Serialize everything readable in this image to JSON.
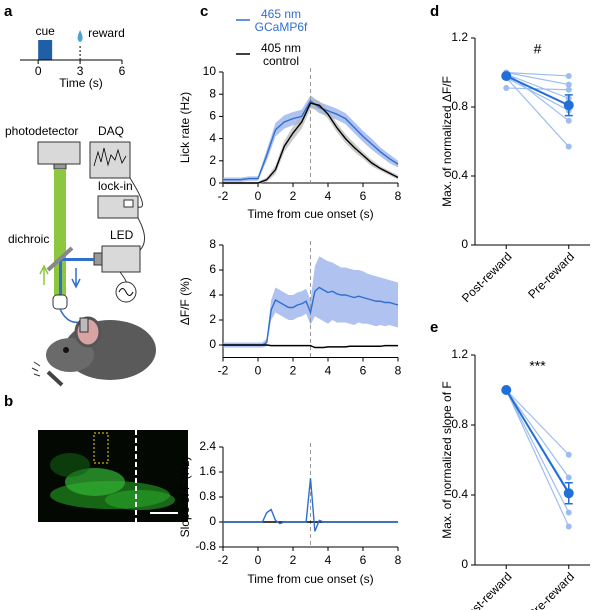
{
  "panels": [
    "a",
    "b",
    "c",
    "d",
    "e"
  ],
  "schematic": {
    "cue_label": "cue",
    "reward_label": "reward",
    "xlabel": "Time (s)",
    "xlim": [
      -1.3,
      6
    ],
    "xticks": [
      0,
      3,
      6
    ],
    "cue": [
      0,
      1
    ],
    "reward": 3,
    "photodetector": "photodetector",
    "daq": "DAQ",
    "lockin": "lock-in",
    "led": "LED",
    "dichroic": "dichroic"
  },
  "chart_data": [
    {
      "type": "line",
      "ylabel": "Lick rate (Hz)",
      "xlabel": "Time from cue onset (s)",
      "xlim": [
        -2,
        8
      ],
      "xticks": [
        -2,
        0,
        2,
        4,
        6,
        8
      ],
      "ylim": [
        0,
        10
      ],
      "yticks": [
        0,
        2,
        4,
        6,
        8,
        10
      ],
      "vline": 3,
      "legend": true,
      "x": [
        -2,
        -1.5,
        -1,
        -0.5,
        0,
        0.5,
        1,
        1.5,
        2,
        2.5,
        3,
        3.5,
        4,
        4.5,
        5,
        5.5,
        6,
        6.5,
        7,
        7.5,
        8
      ],
      "series": [
        {
          "name": "465 nm GCaMP6f",
          "color": "#2f6fd0",
          "band_color": "#8fa8ea",
          "values": [
            0.3,
            0.3,
            0.3,
            0.4,
            0.4,
            2.5,
            4.8,
            5.5,
            5.8,
            6,
            7.4,
            6.8,
            6.5,
            6.2,
            5.8,
            5,
            4.2,
            3.5,
            2.8,
            2.2,
            1.7
          ],
          "errors": [
            0.2,
            0.2,
            0.2,
            0.2,
            0.2,
            0.5,
            0.6,
            0.6,
            0.6,
            0.6,
            0.5,
            0.5,
            0.5,
            0.5,
            0.5,
            0.5,
            0.5,
            0.5,
            0.4,
            0.4,
            0.3
          ]
        },
        {
          "name": "405 nm control",
          "color": "#000000",
          "band_color": "#b5b5b5",
          "values": [
            0,
            0,
            0,
            0,
            0,
            0.3,
            1.2,
            3.3,
            4.5,
            5.5,
            7.2,
            7,
            6.2,
            5,
            4,
            3.2,
            2.5,
            1.8,
            1.3,
            0.9,
            0.5
          ],
          "errors": [
            0.1,
            0.1,
            0.1,
            0.1,
            0.1,
            0.2,
            0.4,
            0.5,
            0.6,
            0.6,
            0.5,
            0.4,
            0.4,
            0.4,
            0.4,
            0.4,
            0.3,
            0.3,
            0.2,
            0.2,
            0.2
          ]
        }
      ]
    },
    {
      "type": "line",
      "ylabel": "ΔF/F (%)",
      "xlim": [
        -2,
        8
      ],
      "xticks": [
        -2,
        0,
        2,
        4,
        6,
        8
      ],
      "ylim": [
        -1,
        8
      ],
      "yticks": [
        0,
        2,
        4,
        6,
        8
      ],
      "vline": 3,
      "x": [
        -2,
        -1.75,
        -1.5,
        -1.25,
        -1,
        -0.75,
        -0.5,
        -0.25,
        0,
        0.25,
        0.5,
        0.75,
        1,
        1.25,
        1.5,
        1.75,
        2,
        2.25,
        2.5,
        2.75,
        3,
        3.25,
        3.5,
        3.75,
        4,
        4.25,
        4.5,
        4.75,
        5,
        5.25,
        5.5,
        5.75,
        6,
        6.25,
        6.5,
        6.75,
        7,
        7.25,
        7.5,
        7.75,
        8
      ],
      "series": [
        {
          "color": "#2f6fd0",
          "band_color": "#8fa8ea",
          "values": [
            0,
            0,
            0,
            0,
            0,
            0,
            0,
            0,
            0,
            0,
            0.2,
            2.8,
            3.6,
            3.4,
            3.2,
            3,
            3,
            3.2,
            3.3,
            3.5,
            2.6,
            4.3,
            4.6,
            4.4,
            4.2,
            4.3,
            4.1,
            4,
            4,
            3.9,
            3.8,
            3.9,
            3.8,
            3.7,
            3.6,
            3.5,
            3.5,
            3.4,
            3.4,
            3.3,
            3.2
          ],
          "errors": [
            0.2,
            0.2,
            0.2,
            0.2,
            0.2,
            0.2,
            0.2,
            0.2,
            0.2,
            0.2,
            0.3,
            0.8,
            1,
            1,
            1,
            1,
            1,
            1,
            1,
            1,
            1,
            2,
            2.5,
            2.5,
            2.5,
            2.3,
            2.3,
            2.2,
            2.2,
            2.2,
            2.2,
            2.1,
            2.1,
            2,
            2,
            2,
            1.9,
            1.9,
            1.8,
            1.8,
            1.8
          ]
        },
        {
          "color": "#000000",
          "values": [
            0,
            0,
            0,
            0,
            0,
            0,
            0,
            0,
            0,
            0,
            0,
            -0.05,
            -0.05,
            -0.05,
            -0.05,
            -0.05,
            -0.05,
            -0.05,
            -0.05,
            -0.05,
            -0.05,
            -0.2,
            -0.2,
            -0.2,
            -0.15,
            -0.15,
            -0.15,
            -0.15,
            -0.15,
            -0.1,
            -0.1,
            -0.1,
            -0.1,
            -0.1,
            -0.1,
            -0.1,
            -0.1,
            -0.05,
            -0.05,
            -0.05,
            -0.05
          ]
        }
      ]
    },
    {
      "type": "line",
      "ylabel": "Slope of F (Hz)",
      "xlabel": "Time from cue onset (s)",
      "xlim": [
        -2,
        8
      ],
      "xticks": [
        -2,
        0,
        2,
        4,
        6,
        8
      ],
      "ylim": [
        -0.8,
        2.4
      ],
      "yticks": [
        -0.8,
        0,
        0.8,
        1.6,
        2.4
      ],
      "vline": 3,
      "x": [
        -2,
        -1.75,
        -1.5,
        -1.25,
        -1,
        -0.75,
        -0.5,
        -0.25,
        0,
        0.25,
        0.5,
        0.75,
        1,
        1.25,
        1.5,
        1.75,
        2,
        2.25,
        2.5,
        2.75,
        3,
        3.25,
        3.5,
        3.75,
        4,
        4.25,
        4.5,
        4.75,
        5,
        5.25,
        5.5,
        5.75,
        6,
        6.25,
        6.5,
        6.75,
        7,
        7.25,
        7.5,
        7.75,
        8
      ],
      "series": [
        {
          "color": "#000000",
          "values": [
            0,
            0,
            0,
            0,
            0,
            0,
            0,
            0,
            0,
            0,
            0,
            0,
            0,
            0,
            0,
            0,
            0,
            0,
            0,
            0,
            0,
            0,
            0,
            0,
            0,
            0,
            0,
            0,
            0,
            0,
            0,
            0,
            0,
            0,
            0,
            0,
            0,
            0,
            0,
            0,
            0
          ]
        },
        {
          "color": "#2f6fd0",
          "values": [
            0,
            0,
            0,
            0,
            0,
            0,
            0,
            0,
            0,
            0,
            0.3,
            0.4,
            0.05,
            -0.05,
            0,
            0,
            0,
            0,
            0,
            0,
            1.4,
            -0.3,
            0.05,
            0,
            0,
            0,
            0,
            0,
            0,
            0,
            0,
            0,
            0,
            0,
            0,
            0,
            0,
            0,
            0,
            0,
            0
          ]
        }
      ]
    },
    {
      "type": "paired",
      "ylabel": "Max. of normalized ΔF/F",
      "annotation": "#",
      "categories": [
        "Post-reward",
        "Pre-reward"
      ],
      "ylim": [
        0,
        1.2
      ],
      "yticks": [
        0,
        0.4,
        0.8,
        1.2
      ],
      "color": "#1f6fd6",
      "subject_color": "#9dbdf0",
      "subjects": [
        [
          1,
          0.98
        ],
        [
          1,
          0.93
        ],
        [
          0.99,
          0.85
        ],
        [
          0.97,
          0.78
        ],
        [
          1,
          0.72
        ],
        [
          0.97,
          0.57
        ],
        [
          0.91,
          0.9
        ]
      ],
      "mean": [
        0.98,
        0.81
      ],
      "sem": [
        0.01,
        0.06
      ]
    },
    {
      "type": "paired",
      "ylabel": "Max. of normalized slope of F",
      "annotation": "***",
      "categories": [
        "Post-reward",
        "Pre-reward"
      ],
      "ylim": [
        0,
        1.2
      ],
      "yticks": [
        0,
        0.4,
        0.8,
        1.2
      ],
      "color": "#1f6fd6",
      "subject_color": "#9dbdf0",
      "subjects": [
        [
          1,
          0.63
        ],
        [
          1,
          0.5
        ],
        [
          1,
          0.42
        ],
        [
          1,
          0.3
        ],
        [
          1,
          0.22
        ]
      ],
      "mean": [
        1,
        0.41
      ],
      "sem": [
        0,
        0.06
      ]
    }
  ]
}
